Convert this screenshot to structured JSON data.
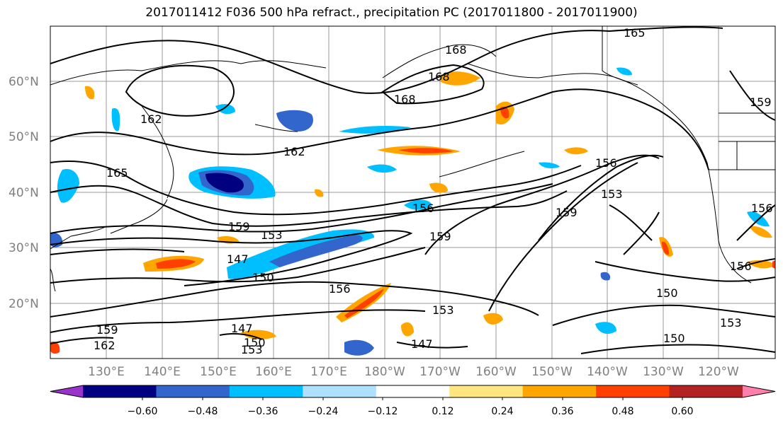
{
  "title": "2017011412 F036 500 hPa refract., precipitation PC (2017011800 - 2017011900)",
  "lat_ticks": [
    "60°N",
    "50°N",
    "40°N",
    "30°N",
    "20°N"
  ],
  "lon_ticks": [
    "130°E",
    "140°E",
    "150°E",
    "160°E",
    "170°E",
    "180°W",
    "170°W",
    "160°W",
    "150°W",
    "140°W",
    "130°W",
    "120°W"
  ],
  "contour_labels": [
    "165",
    "168",
    "168",
    "168",
    "162",
    "165",
    "162",
    "156",
    "153",
    "159",
    "156",
    "159",
    "153",
    "147",
    "150",
    "156",
    "153",
    "147",
    "159",
    "162",
    "147",
    "150",
    "153",
    "150",
    "150",
    "153",
    "159",
    "156",
    "159",
    "156"
  ],
  "colorbar": {
    "ticks": [
      "−0.60",
      "−0.48",
      "−0.36",
      "−0.24",
      "−0.12",
      "0.12",
      "0.24",
      "0.36",
      "0.48",
      "0.60"
    ],
    "colors": [
      "#9933cc",
      "#000080",
      "#3366cc",
      "#00bfff",
      "#b0e0ff",
      "#ffffff",
      "#ffe680",
      "#ffa500",
      "#ff4000",
      "#b22222",
      "#ff80aa"
    ]
  }
}
